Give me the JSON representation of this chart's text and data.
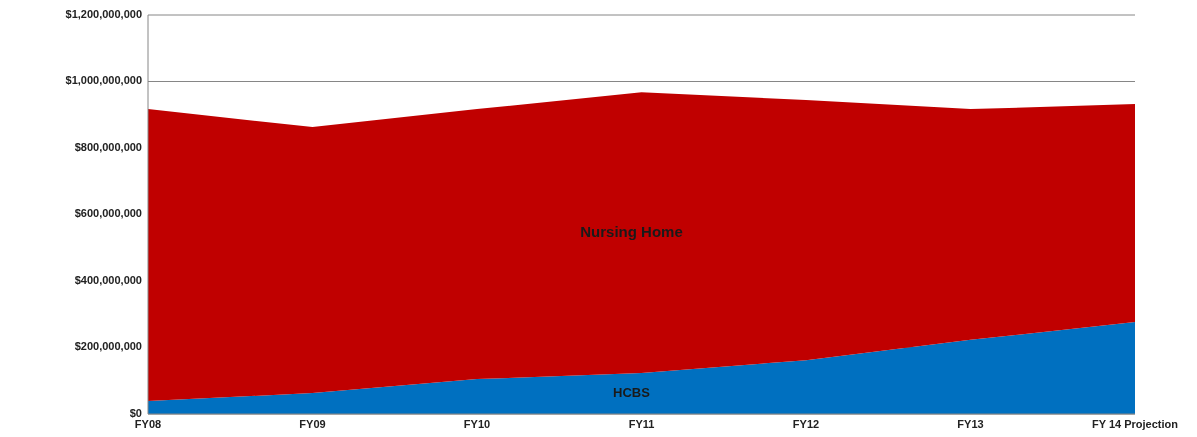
{
  "chart_data": {
    "type": "area",
    "stacked": true,
    "categories": [
      "FY08",
      "FY09",
      "FY10",
      "FY11",
      "FY12",
      "FY13",
      "FY 14 Projection"
    ],
    "series": [
      {
        "name": "HCBS",
        "color": "#0070c0",
        "values": [
          39000000,
          63000000,
          105000000,
          123000000,
          162000000,
          223000000,
          277000000
        ]
      },
      {
        "name": "Nursing Home",
        "color": "#c00000",
        "values": [
          878000000,
          800000000,
          812000000,
          845000000,
          782000000,
          694000000,
          655000000
        ]
      }
    ],
    "ylim": [
      0,
      1200000000
    ],
    "yticks": [
      {
        "value": 0,
        "label": "$0"
      },
      {
        "value": 200000000,
        "label": "$200,000,000"
      },
      {
        "value": 400000000,
        "label": "$400,000,000"
      },
      {
        "value": 600000000,
        "label": "$600,000,000"
      },
      {
        "value": 800000000,
        "label": "$800,000,000"
      },
      {
        "value": 1000000000,
        "label": "$1,000,000,000"
      },
      {
        "value": 1200000000,
        "label": "$1,200,000,000"
      }
    ],
    "grid": "y"
  }
}
